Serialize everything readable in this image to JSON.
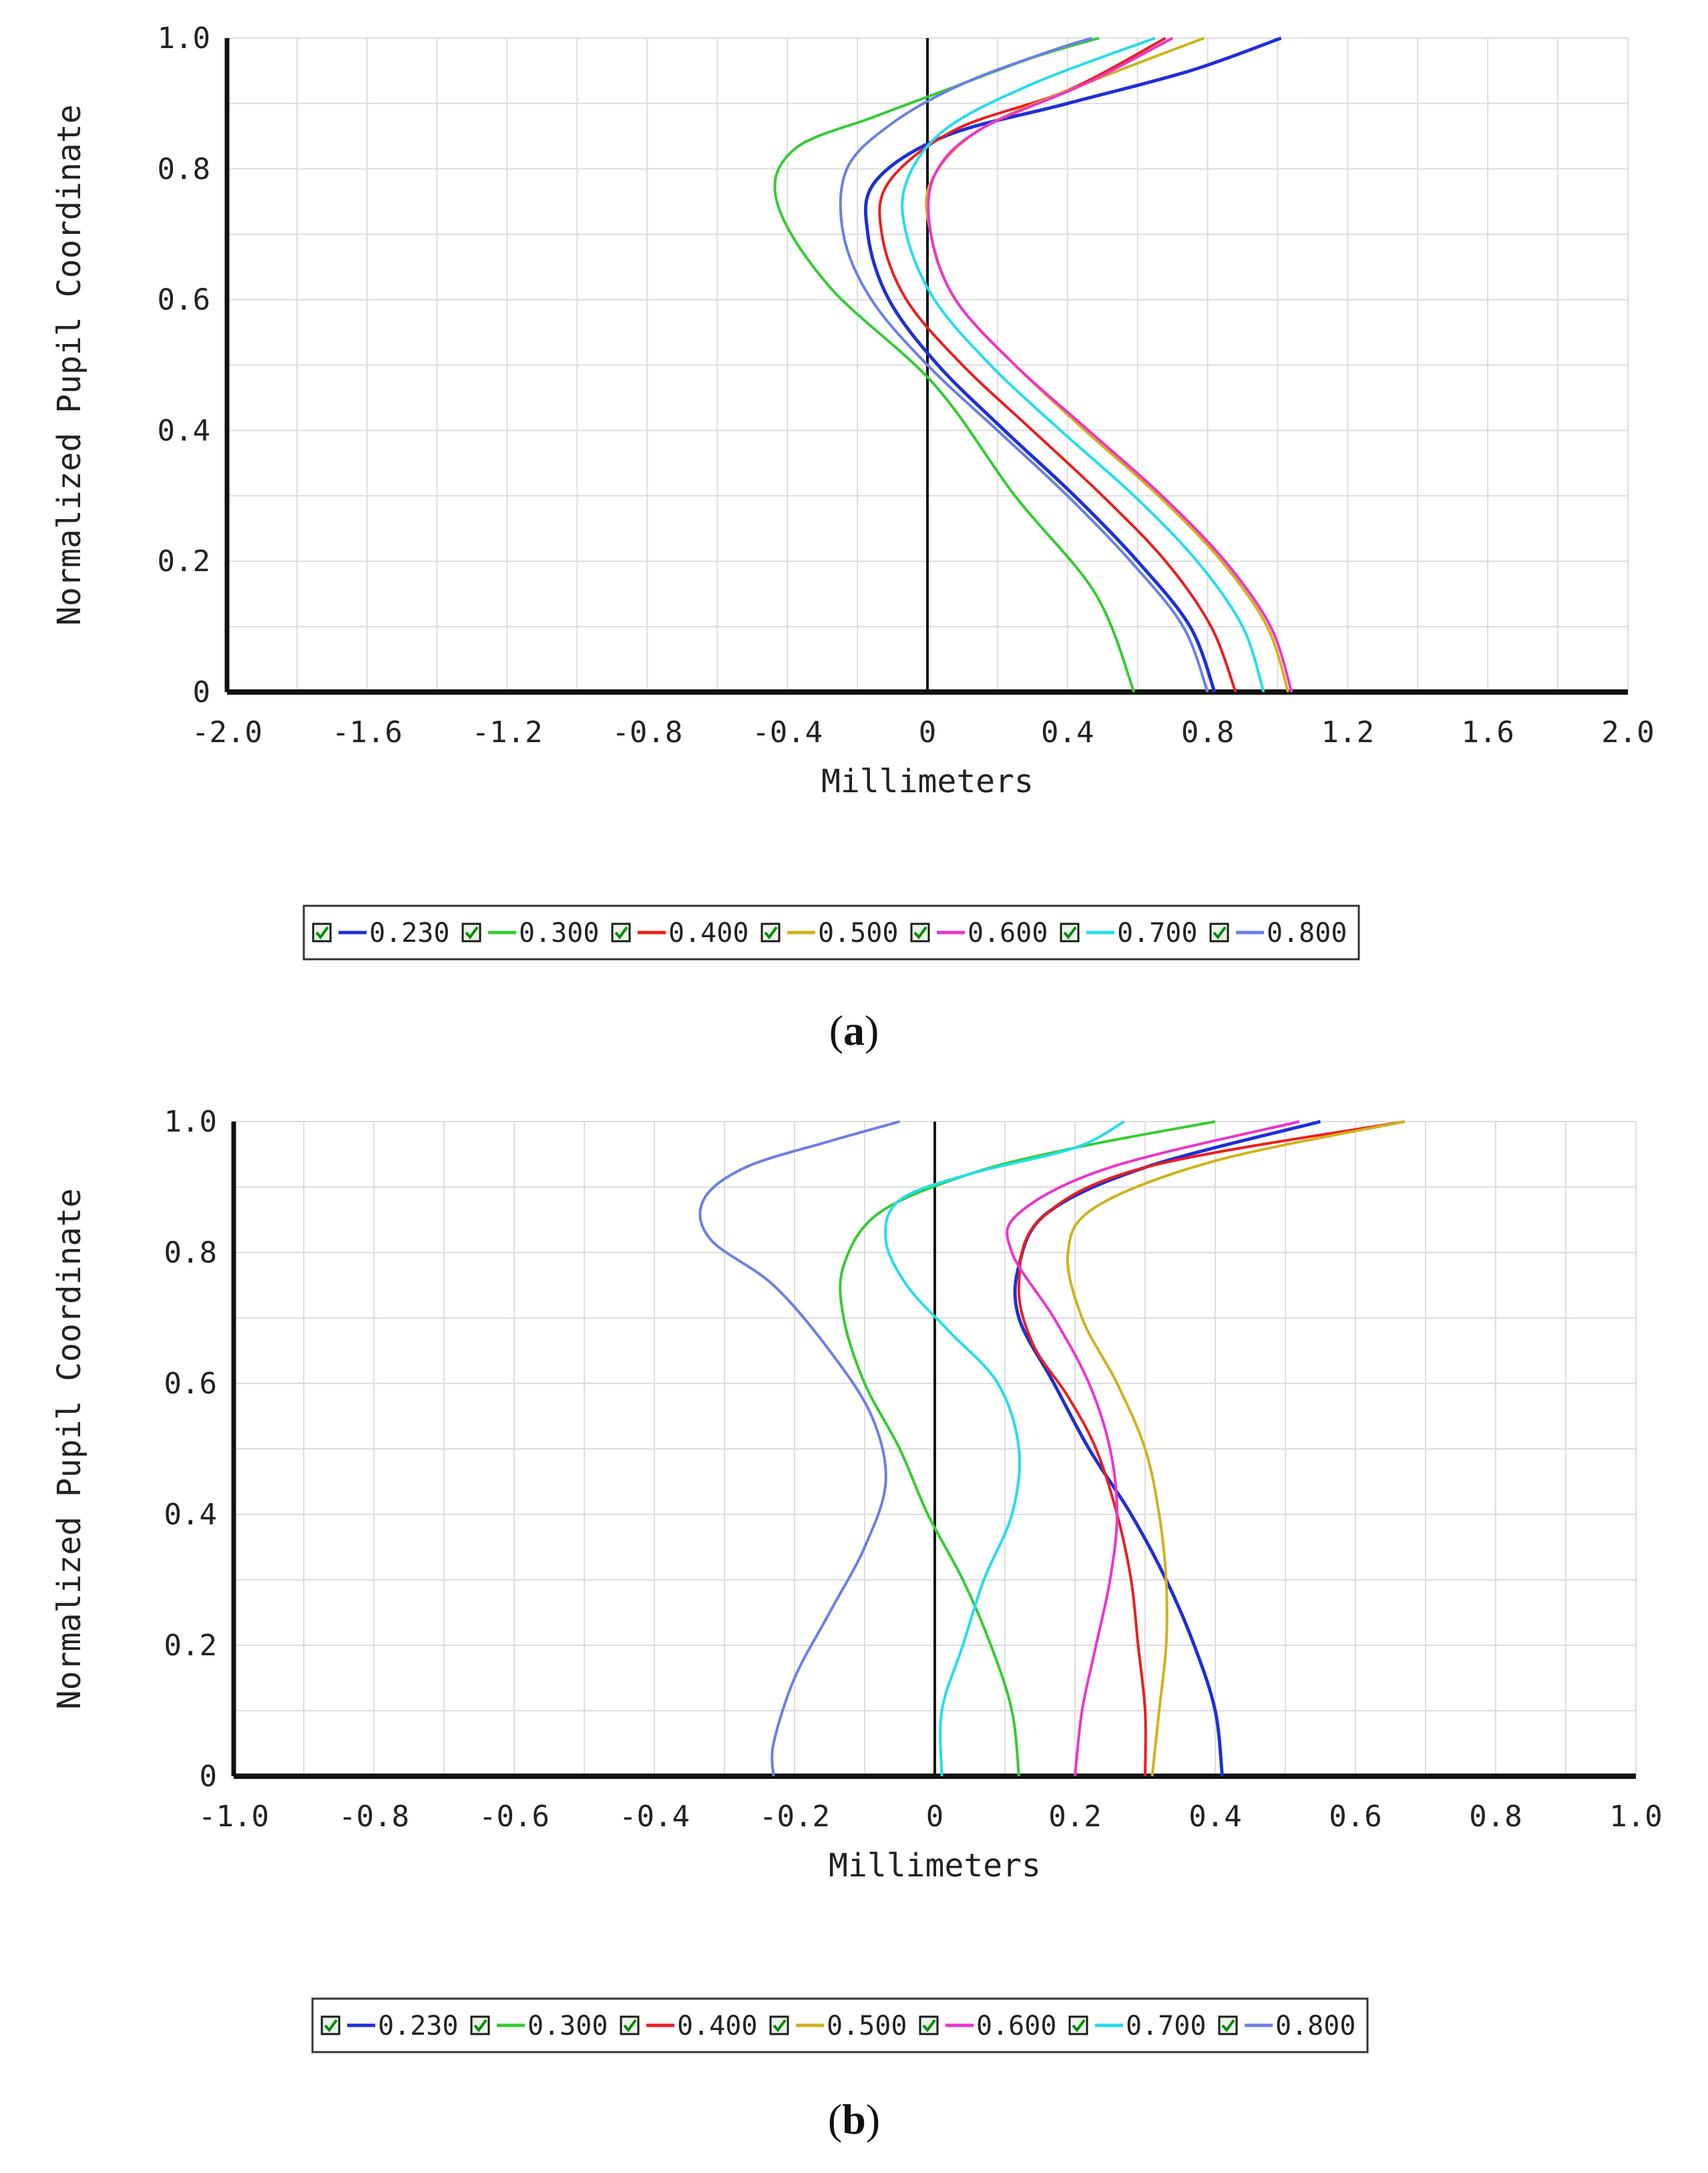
{
  "chart_data": [
    {
      "type": "line",
      "caption": "a",
      "xlabel": "Millimeters",
      "ylabel": "Normalized Pupil Coordinate",
      "xlim": [
        -2.0,
        2.0
      ],
      "ylim": [
        0,
        1.0
      ],
      "xticks": [
        "-2.0",
        "-1.6",
        "-1.2",
        "-0.8",
        "-0.4",
        "0",
        "0.4",
        "0.8",
        "1.2",
        "1.6",
        "2.0"
      ],
      "yticks": [
        "0",
        "0.2",
        "0.4",
        "0.6",
        "0.8",
        "1.0"
      ],
      "grid": true,
      "legend_position": "bottom",
      "series": [
        {
          "name": "0.230",
          "color": "#1f2fd6",
          "points": [
            [
              0.82,
              0
            ],
            [
              0.75,
              0.1
            ],
            [
              0.6,
              0.2
            ],
            [
              0.42,
              0.3
            ],
            [
              0.22,
              0.4
            ],
            [
              0.03,
              0.5
            ],
            [
              -0.11,
              0.6
            ],
            [
              -0.17,
              0.7
            ],
            [
              -0.15,
              0.78
            ],
            [
              0.05,
              0.85
            ],
            [
              0.4,
              0.9
            ],
            [
              0.75,
              0.95
            ],
            [
              1.01,
              1.0
            ]
          ]
        },
        {
          "name": "0.300",
          "color": "#33cc33",
          "points": [
            [
              0.59,
              0
            ],
            [
              0.48,
              0.15
            ],
            [
              0.25,
              0.3
            ],
            [
              0.02,
              0.47
            ],
            [
              -0.28,
              0.62
            ],
            [
              -0.43,
              0.75
            ],
            [
              -0.38,
              0.83
            ],
            [
              -0.15,
              0.88
            ],
            [
              0.05,
              0.92
            ],
            [
              0.3,
              0.97
            ],
            [
              0.49,
              1.0
            ]
          ]
        },
        {
          "name": "0.400",
          "color": "#ee1c1c",
          "points": [
            [
              0.88,
              0
            ],
            [
              0.81,
              0.1
            ],
            [
              0.68,
              0.2
            ],
            [
              0.5,
              0.3
            ],
            [
              0.3,
              0.4
            ],
            [
              0.1,
              0.5
            ],
            [
              -0.06,
              0.6
            ],
            [
              -0.13,
              0.7
            ],
            [
              -0.11,
              0.78
            ],
            [
              0.08,
              0.86
            ],
            [
              0.4,
              0.92
            ],
            [
              0.68,
              1.0
            ]
          ]
        },
        {
          "name": "0.500",
          "color": "#cfb21a",
          "points": [
            [
              1.03,
              0
            ],
            [
              0.97,
              0.1
            ],
            [
              0.84,
              0.2
            ],
            [
              0.66,
              0.3
            ],
            [
              0.45,
              0.4
            ],
            [
              0.25,
              0.5
            ],
            [
              0.08,
              0.6
            ],
            [
              0.01,
              0.7
            ],
            [
              0.01,
              0.78
            ],
            [
              0.15,
              0.86
            ],
            [
              0.45,
              0.93
            ],
            [
              0.79,
              1.0
            ]
          ]
        },
        {
          "name": "0.600",
          "color": "#ee33cc",
          "points": [
            [
              1.04,
              0
            ],
            [
              0.98,
              0.1
            ],
            [
              0.85,
              0.2
            ],
            [
              0.67,
              0.3
            ],
            [
              0.46,
              0.4
            ],
            [
              0.25,
              0.5
            ],
            [
              0.08,
              0.6
            ],
            [
              0.01,
              0.7
            ],
            [
              0.02,
              0.79
            ],
            [
              0.15,
              0.86
            ],
            [
              0.45,
              0.93
            ],
            [
              0.7,
              1.0
            ]
          ]
        },
        {
          "name": "0.700",
          "color": "#22ddee",
          "points": [
            [
              0.96,
              0
            ],
            [
              0.9,
              0.1
            ],
            [
              0.77,
              0.2
            ],
            [
              0.59,
              0.3
            ],
            [
              0.38,
              0.4
            ],
            [
              0.18,
              0.5
            ],
            [
              0.02,
              0.6
            ],
            [
              -0.06,
              0.7
            ],
            [
              -0.06,
              0.78
            ],
            [
              0.05,
              0.86
            ],
            [
              0.3,
              0.93
            ],
            [
              0.65,
              1.0
            ]
          ]
        },
        {
          "name": "0.800",
          "color": "#6a7fe6",
          "points": [
            [
              0.8,
              0
            ],
            [
              0.73,
              0.1
            ],
            [
              0.58,
              0.2
            ],
            [
              0.4,
              0.3
            ],
            [
              0.2,
              0.4
            ],
            [
              0.0,
              0.5
            ],
            [
              -0.16,
              0.6
            ],
            [
              -0.24,
              0.7
            ],
            [
              -0.23,
              0.8
            ],
            [
              -0.1,
              0.87
            ],
            [
              0.1,
              0.93
            ],
            [
              0.35,
              0.98
            ],
            [
              0.47,
              1.0
            ]
          ]
        }
      ]
    },
    {
      "type": "line",
      "caption": "b",
      "xlabel": "Millimeters",
      "ylabel": "Normalized Pupil Coordinate",
      "xlim": [
        -1.0,
        1.0
      ],
      "ylim": [
        0,
        1.0
      ],
      "xticks": [
        "-1.0",
        "-0.8",
        "-0.6",
        "-0.4",
        "-0.2",
        "0",
        "0.2",
        "0.4",
        "0.6",
        "0.8",
        "1.0"
      ],
      "yticks": [
        "0",
        "0.2",
        "0.4",
        "0.6",
        "0.8",
        "1.0"
      ],
      "grid": true,
      "legend_position": "bottom",
      "series": [
        {
          "name": "0.230",
          "color": "#1f2fd6",
          "points": [
            [
              0.41,
              0
            ],
            [
              0.4,
              0.1
            ],
            [
              0.37,
              0.2
            ],
            [
              0.33,
              0.3
            ],
            [
              0.28,
              0.4
            ],
            [
              0.22,
              0.5
            ],
            [
              0.17,
              0.6
            ],
            [
              0.12,
              0.7
            ],
            [
              0.12,
              0.78
            ],
            [
              0.16,
              0.86
            ],
            [
              0.3,
              0.93
            ],
            [
              0.55,
              1.0
            ]
          ]
        },
        {
          "name": "0.300",
          "color": "#33cc33",
          "points": [
            [
              0.12,
              0
            ],
            [
              0.11,
              0.1
            ],
            [
              0.08,
              0.2
            ],
            [
              0.04,
              0.3
            ],
            [
              -0.01,
              0.4
            ],
            [
              -0.05,
              0.5
            ],
            [
              -0.1,
              0.6
            ],
            [
              -0.13,
              0.7
            ],
            [
              -0.13,
              0.78
            ],
            [
              -0.08,
              0.86
            ],
            [
              0.05,
              0.92
            ],
            [
              0.2,
              0.96
            ],
            [
              0.4,
              1.0
            ]
          ]
        },
        {
          "name": "0.400",
          "color": "#ee1c1c",
          "points": [
            [
              0.3,
              0
            ],
            [
              0.3,
              0.1
            ],
            [
              0.29,
              0.2
            ],
            [
              0.28,
              0.3
            ],
            [
              0.26,
              0.4
            ],
            [
              0.23,
              0.5
            ],
            [
              0.19,
              0.58
            ],
            [
              0.14,
              0.66
            ],
            [
              0.12,
              0.75
            ],
            [
              0.15,
              0.85
            ],
            [
              0.3,
              0.93
            ],
            [
              0.67,
              1.0
            ]
          ]
        },
        {
          "name": "0.500",
          "color": "#cfb21a",
          "points": [
            [
              0.31,
              0
            ],
            [
              0.32,
              0.1
            ],
            [
              0.33,
              0.2
            ],
            [
              0.33,
              0.3
            ],
            [
              0.32,
              0.4
            ],
            [
              0.3,
              0.5
            ],
            [
              0.26,
              0.6
            ],
            [
              0.21,
              0.7
            ],
            [
              0.19,
              0.8
            ],
            [
              0.23,
              0.87
            ],
            [
              0.4,
              0.94
            ],
            [
              0.67,
              1.0
            ]
          ]
        },
        {
          "name": "0.600",
          "color": "#ee33cc",
          "points": [
            [
              0.2,
              0
            ],
            [
              0.21,
              0.1
            ],
            [
              0.23,
              0.2
            ],
            [
              0.25,
              0.3
            ],
            [
              0.26,
              0.4
            ],
            [
              0.25,
              0.5
            ],
            [
              0.22,
              0.6
            ],
            [
              0.17,
              0.7
            ],
            [
              0.11,
              0.8
            ],
            [
              0.12,
              0.86
            ],
            [
              0.25,
              0.93
            ],
            [
              0.52,
              1.0
            ]
          ]
        },
        {
          "name": "0.700",
          "color": "#22ddee",
          "points": [
            [
              0.01,
              0
            ],
            [
              0.01,
              0.1
            ],
            [
              0.04,
              0.2
            ],
            [
              0.07,
              0.3
            ],
            [
              0.11,
              0.4
            ],
            [
              0.12,
              0.5
            ],
            [
              0.09,
              0.6
            ],
            [
              0.02,
              0.68
            ],
            [
              -0.04,
              0.75
            ],
            [
              -0.07,
              0.82
            ],
            [
              -0.05,
              0.88
            ],
            [
              0.05,
              0.92
            ],
            [
              0.2,
              0.96
            ],
            [
              0.27,
              1.0
            ]
          ]
        },
        {
          "name": "0.800",
          "color": "#6a7fe6",
          "points": [
            [
              -0.23,
              0
            ],
            [
              -0.23,
              0.05
            ],
            [
              -0.2,
              0.15
            ],
            [
              -0.15,
              0.25
            ],
            [
              -0.1,
              0.35
            ],
            [
              -0.07,
              0.45
            ],
            [
              -0.09,
              0.55
            ],
            [
              -0.15,
              0.65
            ],
            [
              -0.23,
              0.75
            ],
            [
              -0.32,
              0.82
            ],
            [
              -0.33,
              0.88
            ],
            [
              -0.27,
              0.93
            ],
            [
              -0.15,
              0.97
            ],
            [
              -0.05,
              1.0
            ]
          ]
        }
      ]
    }
  ]
}
